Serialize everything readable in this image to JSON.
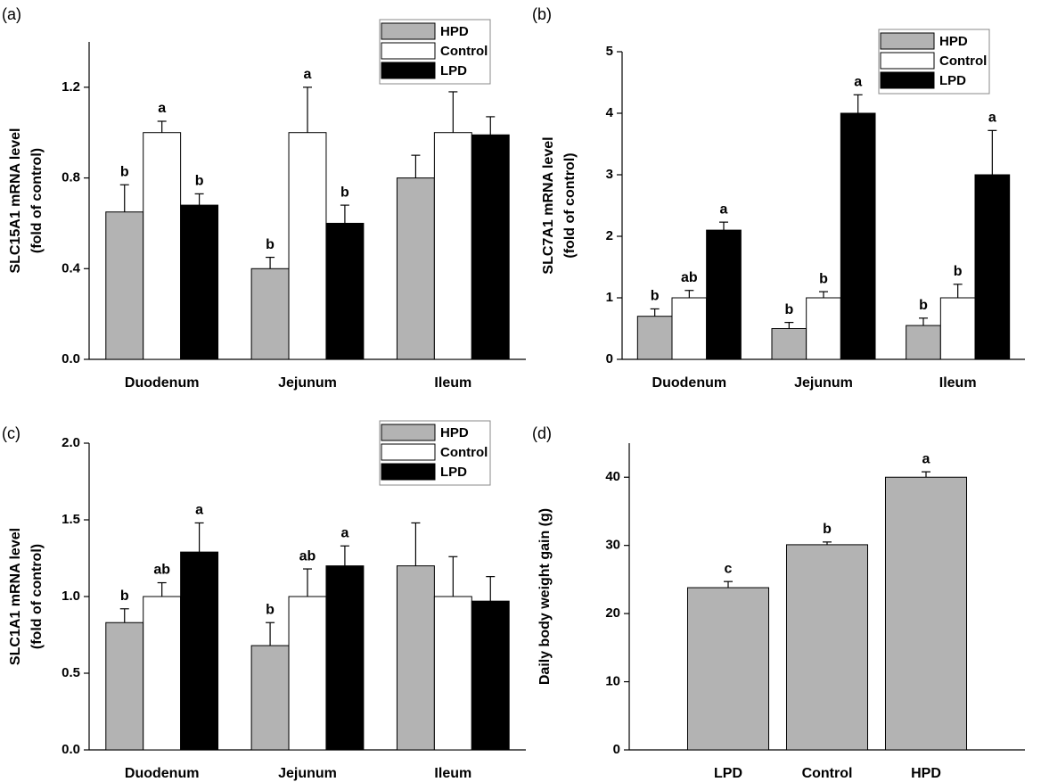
{
  "chart_data": [
    {
      "type": "bar",
      "panel_label": "(a)",
      "ylabel": [
        "SLC15A1 mRNA level",
        "(fold of control)"
      ],
      "categories": [
        "Duodenum",
        "Jejunum",
        "Ileum"
      ],
      "series": [
        {
          "name": "HPD",
          "color": "#b3b3b3",
          "values": [
            0.65,
            0.4,
            0.8
          ],
          "errors": [
            0.12,
            0.05,
            0.1
          ],
          "letters": [
            "b",
            "b",
            null
          ]
        },
        {
          "name": "Control",
          "color": "#ffffff",
          "values": [
            1.0,
            1.0,
            1.0
          ],
          "errors": [
            0.05,
            0.2,
            0.18
          ],
          "letters": [
            "a",
            "a",
            null
          ]
        },
        {
          "name": "LPD",
          "color": "#000000",
          "values": [
            0.68,
            0.6,
            0.99
          ],
          "errors": [
            0.05,
            0.08,
            0.08
          ],
          "letters": [
            "b",
            "b",
            null
          ]
        }
      ],
      "ylim": [
        0,
        1.4
      ],
      "yticks": [
        {
          "value": 0,
          "label": "0.0"
        },
        0.4,
        0.8,
        1.2
      ],
      "legend": "upper right"
    },
    {
      "type": "bar",
      "panel_label": "(b)",
      "ylabel": [
        "SLC7A1 mRNA level",
        "(fold of control)"
      ],
      "categories": [
        "Duodenum",
        "Jejunum",
        "Ileum"
      ],
      "series": [
        {
          "name": "HPD",
          "color": "#b3b3b3",
          "values": [
            0.7,
            0.5,
            0.55
          ],
          "errors": [
            0.12,
            0.1,
            0.12
          ],
          "letters": [
            "b",
            "b",
            "b"
          ]
        },
        {
          "name": "Control",
          "color": "#ffffff",
          "values": [
            1.0,
            1.0,
            1.0
          ],
          "errors": [
            0.12,
            0.1,
            0.22
          ],
          "letters": [
            "ab",
            "b",
            "b"
          ]
        },
        {
          "name": "LPD",
          "color": "#000000",
          "values": [
            2.1,
            4.0,
            3.0
          ],
          "errors": [
            0.13,
            0.3,
            0.72
          ],
          "letters": [
            "a",
            "a",
            "a"
          ]
        }
      ],
      "ylim": [
        0,
        5
      ],
      "yticks": [
        0,
        1,
        2,
        3,
        4,
        5
      ],
      "legend": "upper right"
    },
    {
      "type": "bar",
      "panel_label": "(c)",
      "ylabel": [
        "SLC1A1 mRNA level",
        "(fold of control)"
      ],
      "categories": [
        "Duodenum",
        "Jejunum",
        "Ileum"
      ],
      "series": [
        {
          "name": "HPD",
          "color": "#b3b3b3",
          "values": [
            0.83,
            0.68,
            1.2
          ],
          "errors": [
            0.09,
            0.15,
            0.28
          ],
          "letters": [
            "b",
            "b",
            null
          ]
        },
        {
          "name": "Control",
          "color": "#ffffff",
          "values": [
            1.0,
            1.0,
            1.0
          ],
          "errors": [
            0.09,
            0.18,
            0.26
          ],
          "letters": [
            "ab",
            "ab",
            null
          ]
        },
        {
          "name": "LPD",
          "color": "#000000",
          "values": [
            1.29,
            1.2,
            0.97
          ],
          "errors": [
            0.19,
            0.13,
            0.16
          ],
          "letters": [
            "a",
            "a",
            null
          ]
        }
      ],
      "ylim": [
        0,
        2
      ],
      "yticks": [
        {
          "value": 0,
          "label": "0.0"
        },
        0.5,
        {
          "value": 1,
          "label": "1.0"
        },
        1.5,
        {
          "value": 2,
          "label": "2.0"
        }
      ],
      "legend": "upper right"
    },
    {
      "type": "bar",
      "panel_label": "(d)",
      "ylabel": [
        "Daily body weight gain (g)"
      ],
      "categories": [
        "LPD",
        "Control",
        "HPD"
      ],
      "series": [
        {
          "color": "#b3b3b3",
          "values": [
            23.8,
            30.1,
            40.0
          ],
          "errors": [
            0.9,
            0.4,
            0.8
          ],
          "letters": [
            "c",
            "b",
            "a"
          ]
        }
      ],
      "ylim": [
        0,
        45
      ],
      "yticks": [
        0,
        10,
        20,
        30,
        40
      ]
    }
  ]
}
